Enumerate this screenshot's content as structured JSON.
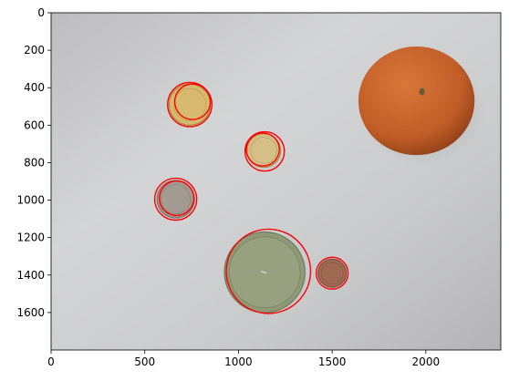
{
  "chart_data": {
    "type": "image",
    "title": "",
    "xlabel": "",
    "ylabel": "",
    "image_extent": {
      "width": 2400,
      "height": 1800
    },
    "xlim": [
      0,
      2400
    ],
    "ylim": [
      1800,
      0
    ],
    "x_ticks": [
      0,
      500,
      1000,
      1500,
      2000
    ],
    "y_ticks": [
      0,
      200,
      400,
      600,
      800,
      1000,
      1200,
      1400,
      1600
    ],
    "grid": false,
    "detection_color": "#ff0000",
    "objects": [
      {
        "kind": "coin",
        "cx": 740,
        "cy": 490,
        "r": 110,
        "fill": "#d8b970",
        "rim": "#a88a3c"
      },
      {
        "kind": "coin",
        "cx": 1135,
        "cy": 735,
        "r": 90,
        "fill": "#d6bf86",
        "rim": "#a68c4f"
      },
      {
        "kind": "coin",
        "cx": 665,
        "cy": 995,
        "r": 100,
        "fill": "#a39a91",
        "rim": "#7a6f66"
      },
      {
        "kind": "coin",
        "cx": 1500,
        "cy": 1390,
        "r": 75,
        "fill": "#a06a52",
        "rim": "#7a4b36"
      },
      {
        "kind": "candle",
        "cx": 1140,
        "cy": 1385,
        "r": 215,
        "fill": "#8f9977",
        "rim": "#6f7a5d"
      }
    ],
    "detections": [
      {
        "cx": 740,
        "cy": 490,
        "r": 118
      },
      {
        "cx": 755,
        "cy": 475,
        "r": 95
      },
      {
        "cx": 1140,
        "cy": 740,
        "r": 105
      },
      {
        "cx": 1130,
        "cy": 730,
        "r": 88
      },
      {
        "cx": 665,
        "cy": 995,
        "r": 112
      },
      {
        "cx": 670,
        "cy": 990,
        "r": 92
      },
      {
        "cx": 1500,
        "cy": 1390,
        "r": 85
      },
      {
        "cx": 1160,
        "cy": 1380,
        "r": 225
      }
    ],
    "orange": {
      "cx": 1950,
      "cy": 470,
      "rx": 310,
      "ry": 290,
      "fill": "#c8642c"
    }
  }
}
